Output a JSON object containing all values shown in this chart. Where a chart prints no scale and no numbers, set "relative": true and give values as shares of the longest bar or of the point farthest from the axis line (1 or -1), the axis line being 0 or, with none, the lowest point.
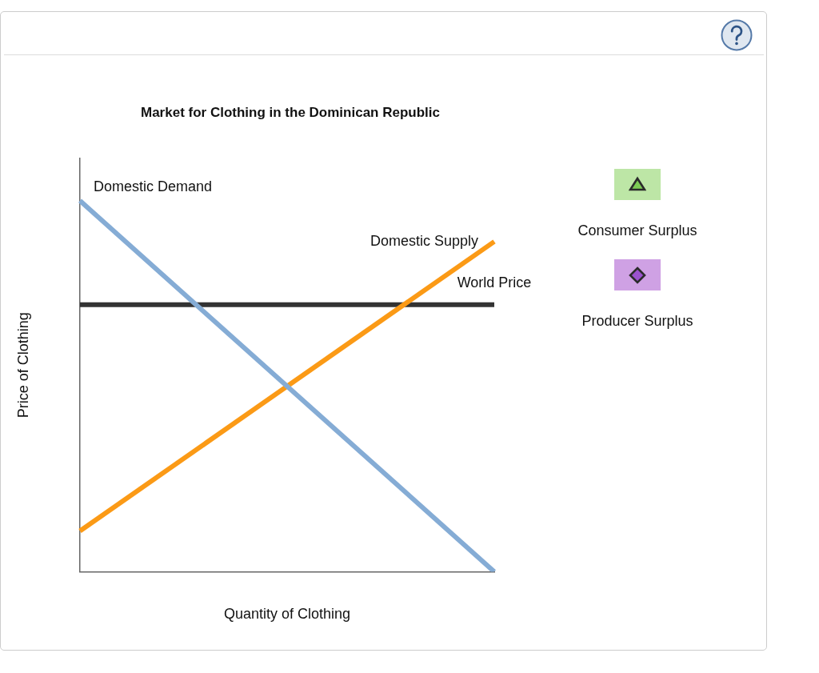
{
  "chart_data": {
    "type": "line",
    "title": "Market for Clothing in the Dominican Republic",
    "xlabel": "Quantity of Clothing",
    "ylabel": "Price of Clothing",
    "relative": true,
    "categories": [
      null,
      null
    ],
    "series": [
      {
        "name": "Domestic Demand",
        "color": "#85acd5",
        "values": [
          1,
          0
        ]
      },
      {
        "name": "Domestic Supply",
        "color": "#fb9a16",
        "values": [
          0.11,
          0.89
        ]
      }
    ],
    "ref_lines": [
      {
        "axis": "y",
        "value": 0.72,
        "label": "World Price",
        "color": "#333333"
      }
    ],
    "marker": "none",
    "line_style": "solid",
    "annotations": [
      "Consumer Surplus",
      "Producer Surplus"
    ]
  }
}
